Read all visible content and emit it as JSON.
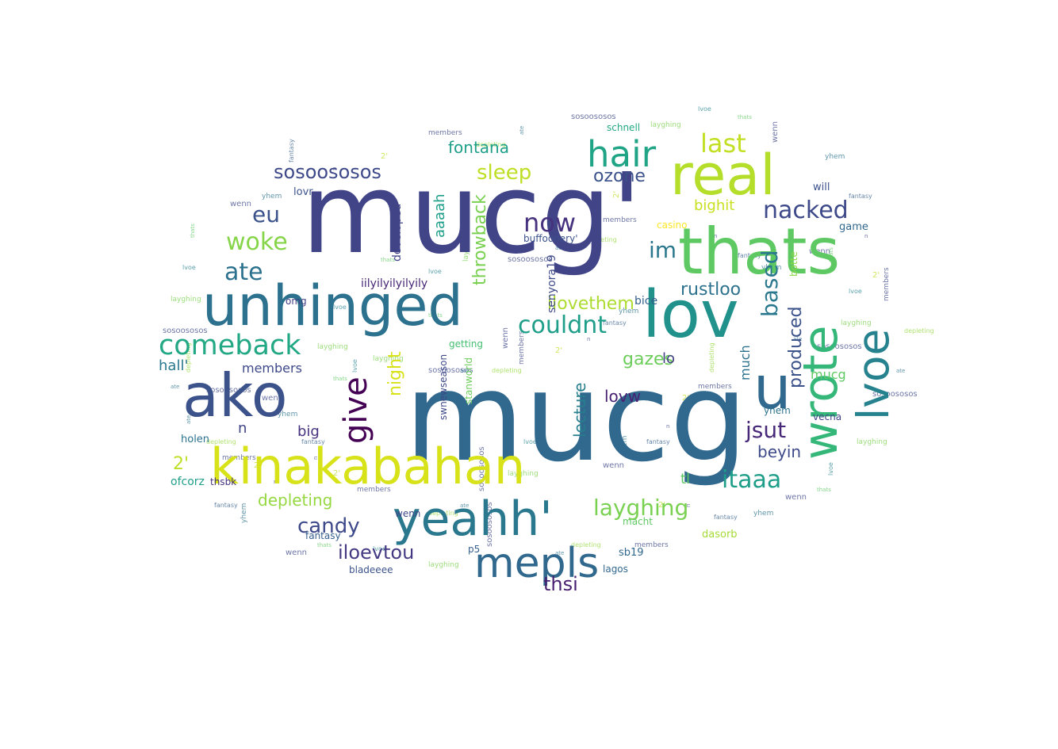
{
  "word_cloud": {
    "shape": "cloud",
    "colormap": "viridis",
    "words": [
      {
        "text": "mucg'",
        "color": "#414487"
      },
      {
        "text": "mucg",
        "color": "#31688e"
      },
      {
        "text": "real",
        "color": "#b5de2b"
      },
      {
        "text": "thats",
        "color": "#5ec962"
      },
      {
        "text": "lov",
        "color": "#21918c"
      },
      {
        "text": "unhinged",
        "color": "#2c728e"
      },
      {
        "text": "kinakabahan",
        "color": "#d8e219"
      },
      {
        "text": "ako",
        "color": "#3b528b"
      },
      {
        "text": "yeahh'",
        "color": "#2a788e"
      },
      {
        "text": "wrote",
        "color": "#35b779"
      },
      {
        "text": "lvoe",
        "color": "#26828e"
      },
      {
        "text": "u",
        "color": "#31688e"
      },
      {
        "text": "mepls",
        "color": "#31688e"
      },
      {
        "text": "hair",
        "color": "#20a486"
      },
      {
        "text": "comeback",
        "color": "#22a884"
      },
      {
        "text": "give",
        "color": "#440154"
      },
      {
        "text": "couldnt",
        "color": "#1f9e89"
      },
      {
        "text": "layghing",
        "color": "#7ad151"
      },
      {
        "text": "last",
        "color": "#c2df23"
      },
      {
        "text": "nacked",
        "color": "#3e4989"
      },
      {
        "text": "now",
        "color": "#46327e"
      },
      {
        "text": "im",
        "color": "#2a788e"
      },
      {
        "text": "woke",
        "color": "#86d549"
      },
      {
        "text": "sleep",
        "color": "#bddf26"
      },
      {
        "text": "sosoososos",
        "color": "#3e4989"
      },
      {
        "text": "ozone",
        "color": "#3b528b"
      },
      {
        "text": "eu",
        "color": "#3b528b"
      },
      {
        "text": "jsut",
        "color": "#482878"
      },
      {
        "text": "itaaa",
        "color": "#1f9e89"
      },
      {
        "text": "candy",
        "color": "#3e4989"
      },
      {
        "text": "iloevtou",
        "color": "#443983"
      },
      {
        "text": "ate",
        "color": "#2c728e"
      },
      {
        "text": "thsi",
        "color": "#481f70"
      },
      {
        "text": "based",
        "color": "#2a788e"
      },
      {
        "text": "produced",
        "color": "#3b528b"
      },
      {
        "text": "fontana",
        "color": "#1f9e89"
      },
      {
        "text": "ilovethem",
        "color": "#addc30"
      },
      {
        "text": "rustloo",
        "color": "#2c728e"
      },
      {
        "text": "depleting",
        "color": "#95d840"
      },
      {
        "text": "beyin",
        "color": "#3e4989"
      },
      {
        "text": "lovw",
        "color": "#482173"
      },
      {
        "text": "gazes",
        "color": "#6ccd5a"
      },
      {
        "text": "throwback",
        "color": "#7ad151"
      },
      {
        "text": "night",
        "color": "#d8e219"
      },
      {
        "text": "hall'",
        "color": "#2a788e"
      },
      {
        "text": "members",
        "color": "#3e4989"
      },
      {
        "text": "bighit",
        "color": "#c8e020"
      },
      {
        "text": "tl",
        "color": "#5ec962"
      },
      {
        "text": "lecture",
        "color": "#277f8e"
      },
      {
        "text": "aaaah",
        "color": "#1f9e89"
      },
      {
        "text": "mucg",
        "color": "#5ec962"
      },
      {
        "text": "much",
        "color": "#2c728e"
      },
      {
        "text": "2'",
        "color": "#bddf26"
      },
      {
        "text": "big",
        "color": "#46327e"
      },
      {
        "text": "iilyilyilyilyily",
        "color": "#482878"
      },
      {
        "text": "senyora19",
        "color": "#3e4989"
      },
      {
        "text": "buffoonery'",
        "color": "#3b528b"
      },
      {
        "text": "schnell",
        "color": "#22a884"
      },
      {
        "text": "lo",
        "color": "#433e85"
      },
      {
        "text": "n",
        "color": "#414487"
      },
      {
        "text": "bice",
        "color": "#355f8d"
      },
      {
        "text": "developed",
        "color": "#414487"
      },
      {
        "text": "stanworld",
        "color": "#6ccd5a"
      },
      {
        "text": "swnewseason",
        "color": "#3e4989"
      },
      {
        "text": "bladeeee",
        "color": "#3b528b"
      },
      {
        "text": "sb19",
        "color": "#31688e"
      },
      {
        "text": "fantasy",
        "color": "#355f8d"
      },
      {
        "text": "macht",
        "color": "#5ec962"
      },
      {
        "text": "dasorb",
        "color": "#a5db36"
      },
      {
        "text": "ofcorz",
        "color": "#1f9e89"
      },
      {
        "text": "holen",
        "color": "#2c728e"
      },
      {
        "text": "p5",
        "color": "#355f8d"
      },
      {
        "text": "vecna",
        "color": "#404387"
      },
      {
        "text": "yhem",
        "color": "#2c728e"
      },
      {
        "text": "casino",
        "color": "#fde725"
      },
      {
        "text": "game",
        "color": "#31688e"
      },
      {
        "text": "getting",
        "color": "#44bf70"
      },
      {
        "text": "lagos",
        "color": "#31688e"
      },
      {
        "text": "will",
        "color": "#3b528b"
      },
      {
        "text": "thsbk",
        "color": "#46327e"
      },
      {
        "text": "wenn",
        "color": "#3e4989"
      },
      {
        "text": "lovr",
        "color": "#3b528b"
      },
      {
        "text": "botte",
        "color": "#8bd646"
      },
      {
        "text": "omg",
        "color": "#433e85"
      }
    ]
  }
}
